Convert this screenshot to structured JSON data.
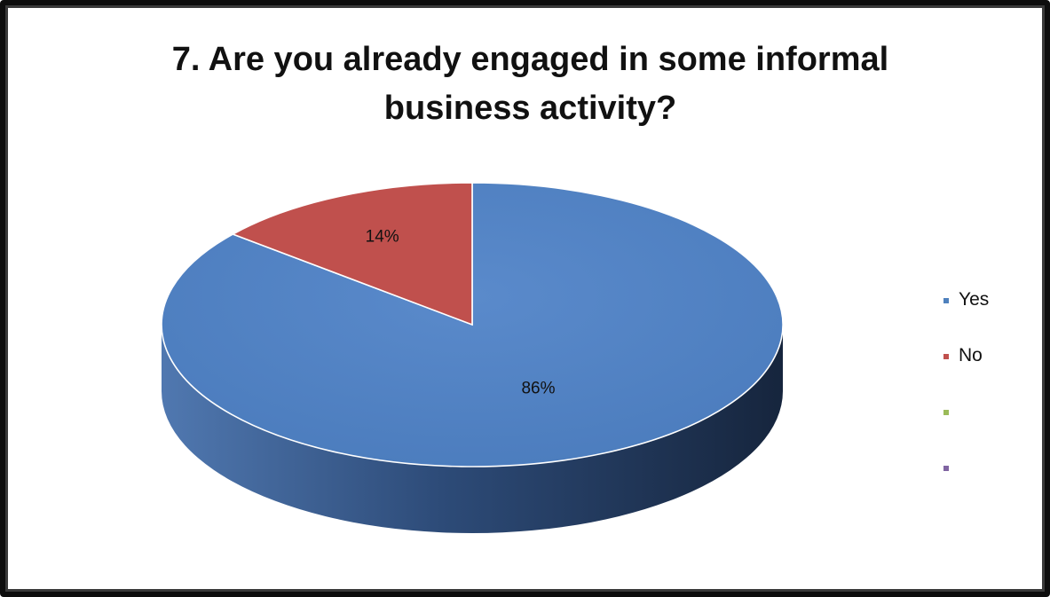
{
  "chart_data": {
    "type": "pie",
    "title": "7. Are you already engaged in some informal\nbusiness activity?",
    "slices": [
      {
        "label": "Yes",
        "value": 86,
        "data_label": "86%",
        "color": "#4F81BD",
        "side_color": "#2E4D78"
      },
      {
        "label": "No",
        "value": 14,
        "data_label": "14%",
        "color": "#C0504D",
        "side_color": "#8C3A38"
      },
      {
        "label": "",
        "value": 0,
        "data_label": "",
        "color": "#9BBB59",
        "side_color": "#6E8A3C"
      },
      {
        "label": "",
        "value": 0,
        "data_label": "",
        "color": "#8064A2",
        "side_color": "#5A4675"
      }
    ],
    "legend_position": "right",
    "style": "3d-pie"
  }
}
